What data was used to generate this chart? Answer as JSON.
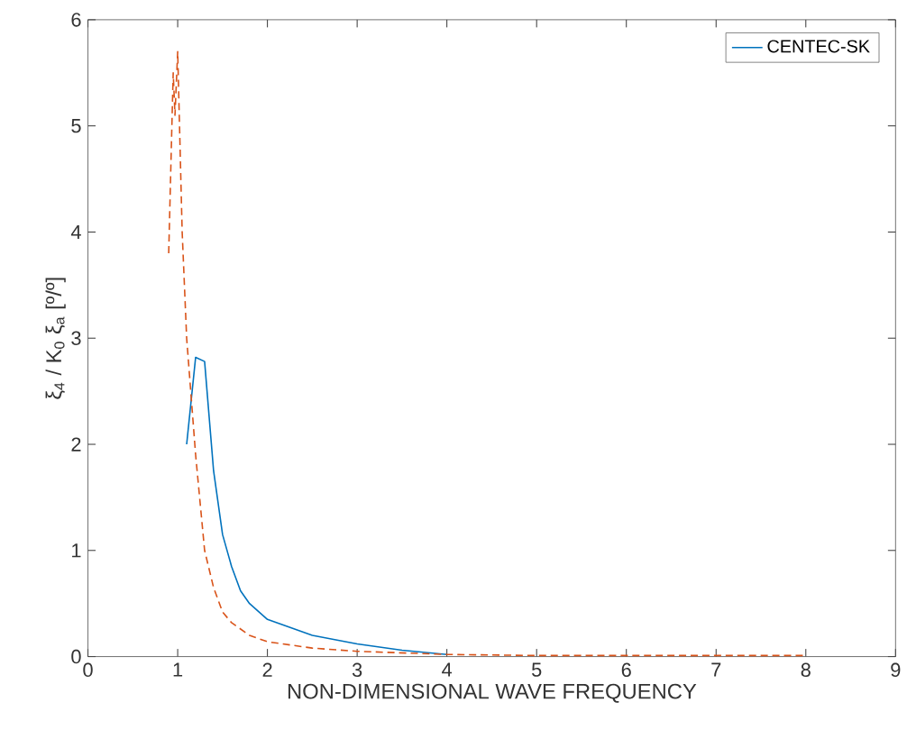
{
  "chart_data": {
    "type": "line",
    "xlabel": "NON-DIMENSIONAL WAVE FREQUENCY",
    "ylabel": "ξ$_{4}$ / K$_{0}$ ξ$_{a}$ [º/º]",
    "xlim": [
      0,
      9
    ],
    "ylim": [
      0,
      6
    ],
    "xticks": [
      0,
      1,
      2,
      3,
      4,
      5,
      6,
      7,
      8,
      9
    ],
    "yticks": [
      0,
      1,
      2,
      3,
      4,
      5,
      6
    ],
    "legend": "top right",
    "grid": false,
    "series": [
      {
        "name": "CENTEC-SK",
        "color": "#0072bd",
        "line_style": "solid",
        "x": [
          1.1,
          1.2,
          1.3,
          1.4,
          1.5,
          1.6,
          1.7,
          1.8,
          2.0,
          2.5,
          3.0,
          3.5,
          4.0
        ],
        "values": [
          2.0,
          2.82,
          2.78,
          1.75,
          1.15,
          0.85,
          0.62,
          0.5,
          0.35,
          0.2,
          0.12,
          0.06,
          0.02
        ]
      },
      {
        "color": "#d95319",
        "line_style": "dashed",
        "x": [
          0.9,
          0.95,
          0.97,
          1.0,
          1.05,
          1.1,
          1.2,
          1.3,
          1.4,
          1.5,
          1.6,
          1.8,
          2.0,
          2.5,
          3.0,
          4.0,
          5.0,
          6.0,
          7.0,
          8.0
        ],
        "values": [
          3.8,
          5.5,
          5.1,
          5.7,
          4.0,
          3.0,
          1.9,
          1.0,
          0.65,
          0.42,
          0.32,
          0.2,
          0.14,
          0.08,
          0.05,
          0.02,
          0.01,
          0.01,
          0.01,
          0.01
        ]
      }
    ]
  }
}
